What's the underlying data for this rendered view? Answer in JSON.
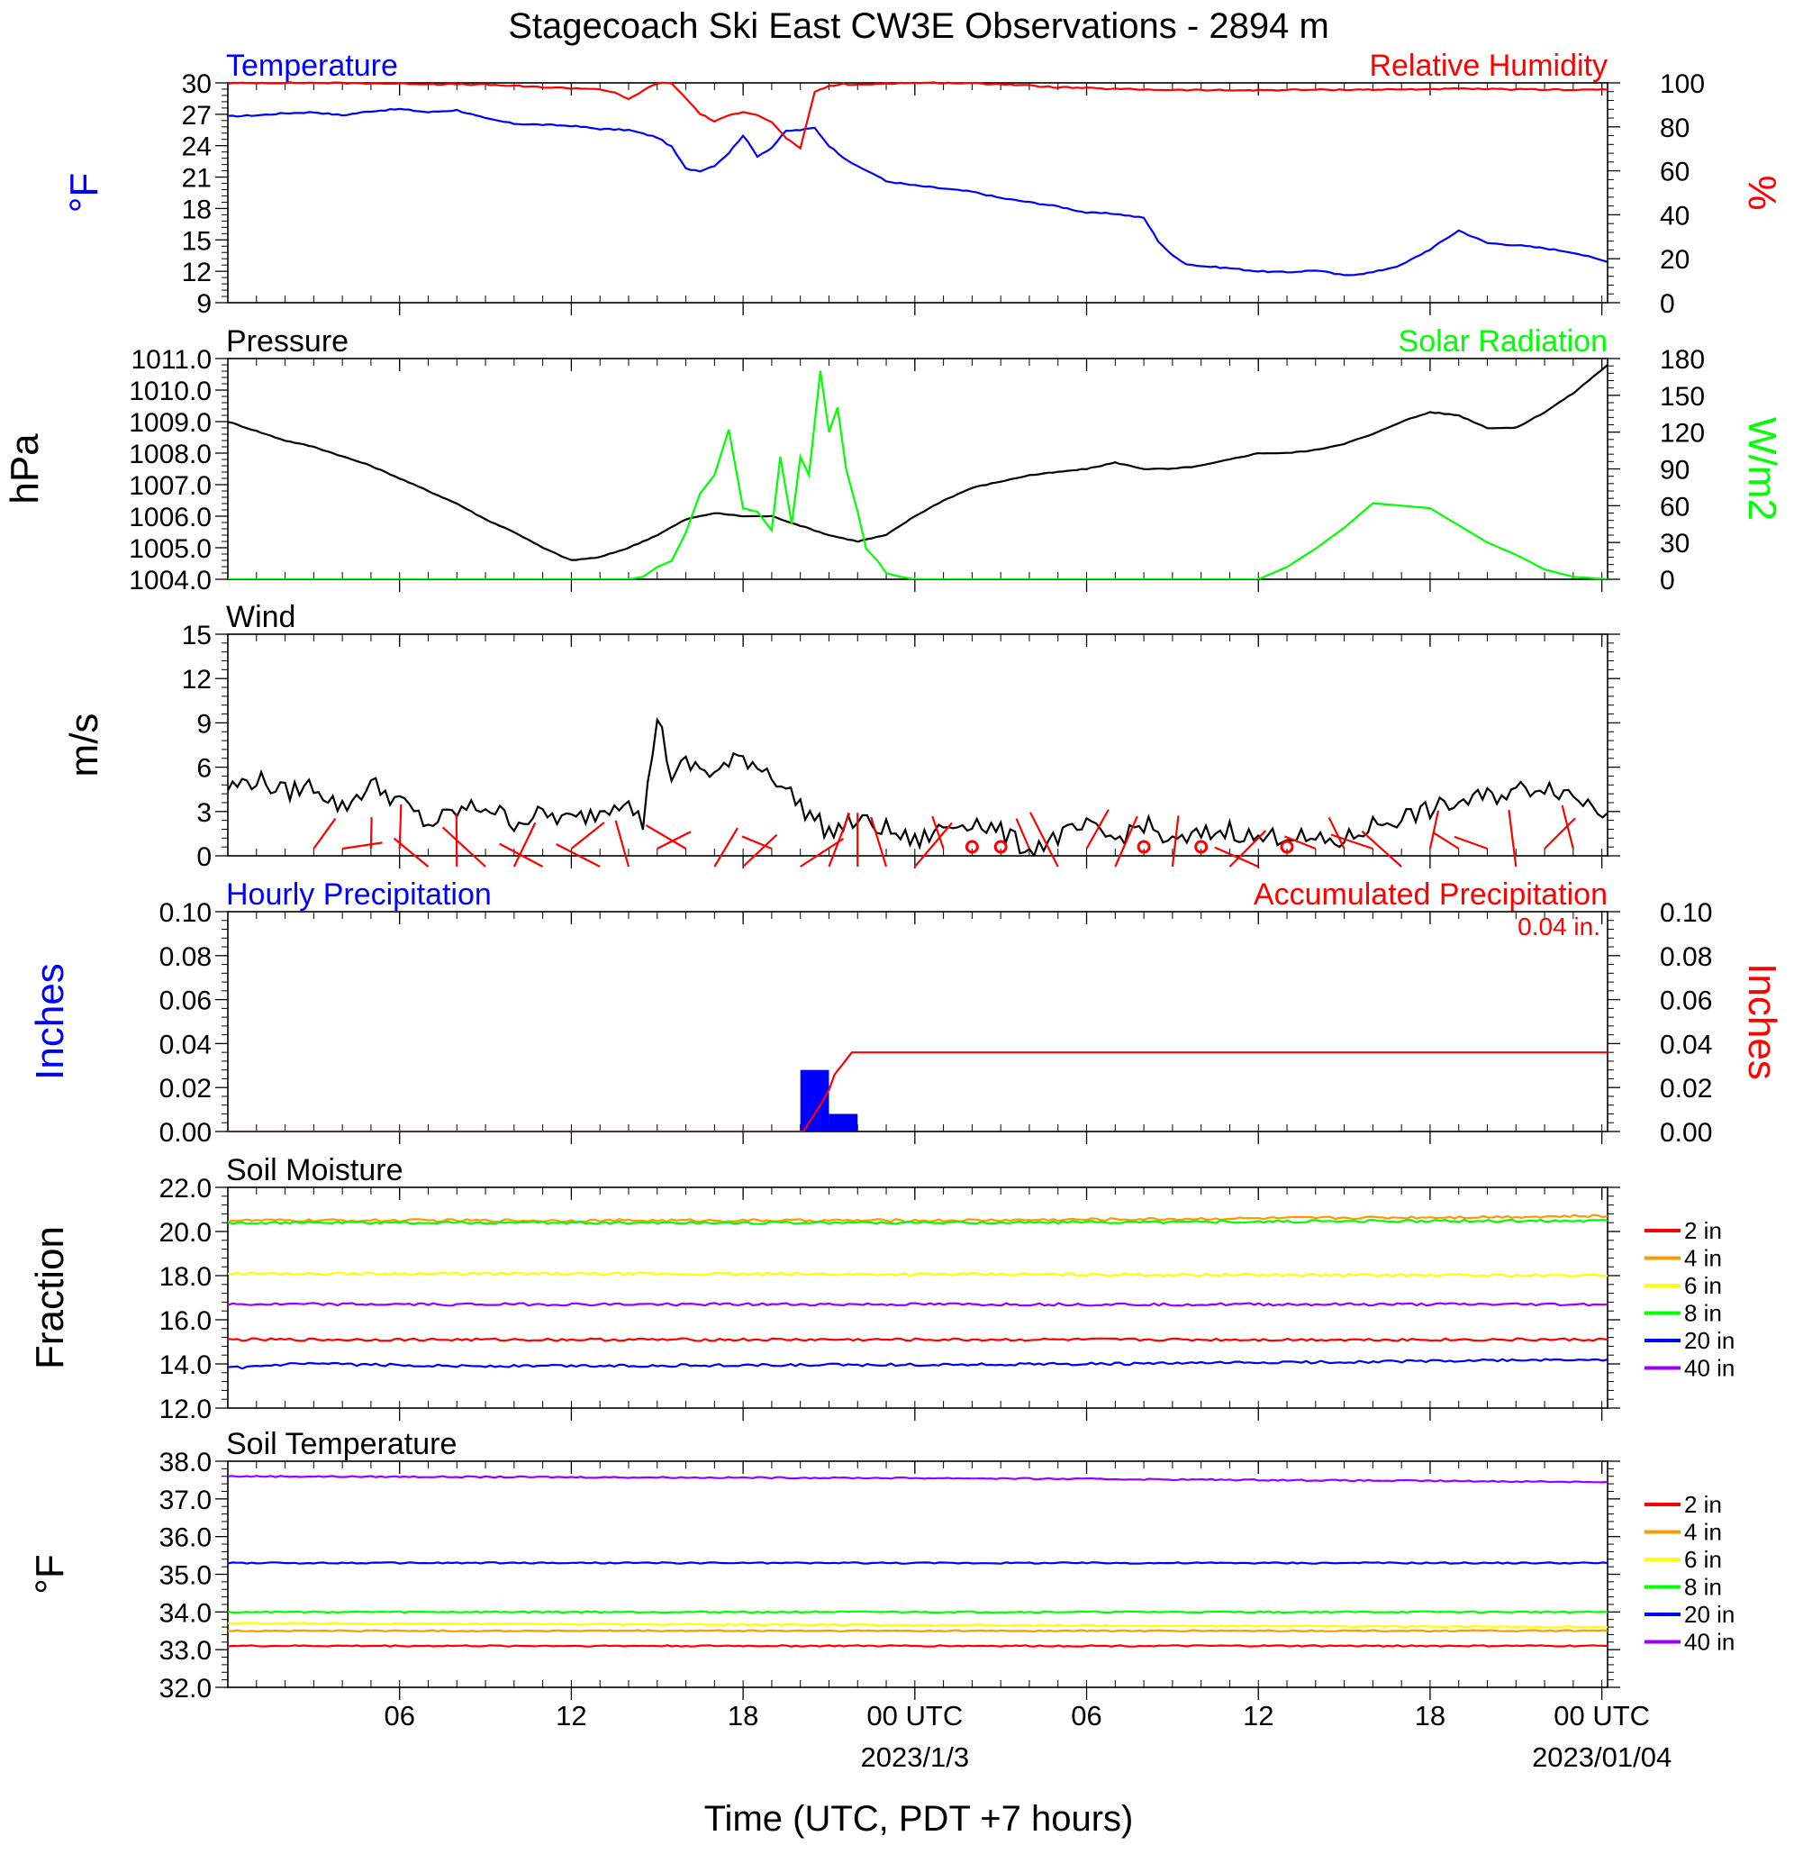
{
  "figure": {
    "title": "Stagecoach Ski East CW3E Observations - 2894 m",
    "xlabel": "Time (UTC, PDT +7 hours)",
    "x_ticks": [
      "06",
      "12",
      "18",
      "00 UTC",
      "06",
      "12",
      "18",
      "00 UTC"
    ],
    "x_dates": [
      "2023/1/3",
      "2023/01/04"
    ],
    "x_range_hours": [
      -1.0,
      47.2
    ]
  },
  "chart_data": [
    {
      "type": "line",
      "panel": "temperature_rh",
      "left_title": "Temperature",
      "right_title": "Relative Humidity",
      "ylabel_left": "°F",
      "ylabel_right": "%",
      "ylim_left": [
        9,
        30
      ],
      "yticks_left": [
        "30",
        "27",
        "24",
        "21",
        "18",
        "15",
        "12",
        "9"
      ],
      "ylim_right": [
        0,
        100
      ],
      "yticks_right": [
        "100",
        "80",
        "60",
        "40",
        "20",
        "0"
      ],
      "series": [
        {
          "name": "Temperature",
          "axis": "left",
          "color": "#0000ff",
          "x": [
            -1,
            0,
            1,
            2,
            3,
            4,
            5,
            6,
            7,
            8,
            9,
            10,
            11,
            12,
            13,
            14,
            14.5,
            15,
            15.5,
            16,
            16.5,
            17,
            17.5,
            18,
            18.5,
            19,
            19.5,
            20,
            20.5,
            21,
            21.5,
            22,
            23,
            24,
            25,
            26,
            27,
            28,
            29,
            30,
            31,
            31.5,
            32,
            32.5,
            33,
            34,
            35,
            36,
            37,
            38,
            39,
            40,
            41,
            41.5,
            42,
            43,
            44,
            45,
            46,
            47.2
          ],
          "y": [
            26.8,
            26.9,
            27.1,
            27.2,
            26.9,
            27.3,
            27.5,
            27.2,
            27.4,
            26.6,
            26.1,
            26.0,
            25.9,
            25.6,
            25.5,
            24.8,
            23.9,
            21.8,
            21.6,
            22.1,
            23.3,
            25.0,
            23.0,
            23.8,
            25.4,
            25.5,
            25.7,
            24.0,
            22.9,
            22.0,
            21.4,
            20.6,
            20.2,
            19.9,
            19.6,
            19.0,
            18.6,
            18.2,
            17.6,
            17.5,
            17.1,
            14.9,
            13.5,
            12.7,
            12.5,
            12.3,
            12.0,
            11.9,
            12.1,
            11.6,
            11.9,
            12.6,
            14.1,
            15.0,
            15.9,
            14.7,
            14.5,
            14.2,
            13.8,
            12.9
          ]
        },
        {
          "name": "Relative Humidity",
          "axis": "right",
          "color": "#ff0000",
          "x": [
            -1,
            0,
            2,
            4,
            6,
            8,
            10,
            12,
            12.5,
            13,
            13.5,
            14,
            14.5,
            15,
            15.5,
            16,
            16.5,
            17,
            17.5,
            18,
            18.5,
            19,
            19.5,
            20,
            20.5,
            21,
            22,
            23,
            24,
            26,
            28,
            30,
            32,
            34,
            36,
            38,
            40,
            42,
            44,
            46,
            47.2
          ],
          "y": [
            99.8,
            100,
            100,
            99.8,
            99.5,
            99.2,
            98.0,
            97.2,
            95.5,
            92.5,
            96.5,
            99.8,
            99.9,
            93.0,
            86.0,
            82.5,
            85.0,
            87.0,
            85.5,
            82.0,
            75.0,
            70.0,
            96.0,
            98.5,
            99.5,
            99.0,
            99.8,
            100,
            100,
            99.5,
            98.0,
            97.2,
            96.8,
            96.6,
            96.8,
            96.9,
            97.0,
            97.3,
            97.0,
            96.9,
            96.9
          ]
        }
      ]
    },
    {
      "type": "line",
      "panel": "pressure_solar",
      "left_title": "Pressure",
      "right_title": "Solar Radiation",
      "ylabel_left": "hPa",
      "ylabel_right": "W/m2",
      "ylim_left": [
        1004.0,
        1011.0
      ],
      "yticks_left": [
        "1011.0",
        "1010.0",
        "1009.0",
        "1008.0",
        "1007.0",
        "1006.0",
        "1005.0",
        "1004.0"
      ],
      "ylim_right": [
        0,
        180
      ],
      "yticks_right": [
        "180",
        "150",
        "120",
        "90",
        "60",
        "30",
        "0"
      ],
      "series": [
        {
          "name": "Pressure",
          "axis": "left",
          "color": "#000000",
          "x": [
            -1,
            0,
            1,
            2,
            3,
            4,
            5,
            6,
            7,
            8,
            9,
            10,
            11,
            12,
            13,
            14,
            15,
            16,
            17,
            18,
            19,
            20,
            21,
            22,
            23,
            24,
            25,
            26,
            27,
            28,
            29,
            30,
            31,
            32,
            33,
            34,
            35,
            36,
            37,
            38,
            39,
            40,
            41,
            42,
            43,
            44,
            45,
            46,
            47.2
          ],
          "y": [
            1009.0,
            1008.7,
            1008.4,
            1008.2,
            1007.9,
            1007.6,
            1007.2,
            1006.8,
            1006.4,
            1005.9,
            1005.5,
            1005.0,
            1004.6,
            1004.7,
            1005.0,
            1005.4,
            1005.9,
            1006.1,
            1006.0,
            1006.0,
            1005.7,
            1005.4,
            1005.2,
            1005.4,
            1006.0,
            1006.5,
            1006.9,
            1007.1,
            1007.3,
            1007.4,
            1007.5,
            1007.7,
            1007.5,
            1007.5,
            1007.6,
            1007.8,
            1008.0,
            1008.0,
            1008.1,
            1008.3,
            1008.6,
            1009.0,
            1009.3,
            1009.2,
            1008.8,
            1008.8,
            1009.3,
            1009.9,
            1010.8
          ]
        },
        {
          "name": "Solar Radiation",
          "axis": "right",
          "color": "#00ff00",
          "x": [
            -1,
            12,
            13,
            13.5,
            14,
            14.5,
            15,
            15.5,
            16,
            16.5,
            17,
            17.5,
            18,
            18.3,
            18.7,
            19,
            19.3,
            19.7,
            20,
            20.3,
            20.6,
            21,
            21.3,
            21.7,
            22,
            22.5,
            23,
            24,
            35,
            36,
            37,
            38,
            39,
            40,
            41,
            42,
            43,
            44,
            45,
            46,
            47.2
          ],
          "y": [
            0,
            0,
            0,
            2,
            10,
            15,
            38,
            70,
            85,
            122,
            58,
            55,
            40,
            100,
            45,
            100,
            85,
            170,
            120,
            140,
            90,
            55,
            25,
            15,
            5,
            2,
            0,
            0,
            0,
            10,
            25,
            42,
            62,
            60,
            58,
            44,
            30,
            20,
            8,
            2,
            0
          ]
        }
      ]
    },
    {
      "type": "line",
      "panel": "wind",
      "left_title": "Wind",
      "ylabel_left": "m/s",
      "ylim_left": [
        0,
        15
      ],
      "yticks_left": [
        "15",
        "12",
        "9",
        "6",
        "3",
        "0"
      ],
      "series": [
        {
          "name": "Wind",
          "axis": "left",
          "color": "#000000",
          "x": [
            -1,
            0,
            1,
            2,
            3,
            4,
            5,
            6,
            7,
            8,
            9,
            10,
            11,
            12,
            13,
            13.5,
            14,
            14.5,
            15,
            16,
            17,
            18,
            19,
            20,
            21,
            22,
            23,
            24,
            25,
            26,
            27,
            28,
            29,
            30,
            31,
            32,
            33,
            34,
            35,
            36,
            37,
            38,
            39,
            40,
            41,
            42,
            43,
            44,
            45,
            46,
            47.2
          ],
          "y": [
            4.6,
            5.2,
            4.3,
            4.8,
            3.2,
            4.9,
            3.7,
            2.1,
            3.0,
            3.4,
            2.3,
            2.8,
            2.4,
            3.0,
            4.1,
            2.0,
            9.6,
            5.4,
            6.2,
            5.6,
            6.7,
            5.6,
            3.4,
            1.6,
            2.4,
            1.8,
            0.9,
            1.9,
            2.4,
            1.6,
            0.4,
            1.3,
            1.9,
            1.1,
            2.2,
            0.8,
            1.4,
            1.8,
            1.1,
            1.5,
            0.9,
            1.0,
            2.1,
            2.6,
            3.1,
            3.6,
            4.0,
            4.4,
            4.8,
            4.1,
            2.9
          ]
        }
      ],
      "barbs_hours": [
        2,
        3,
        4,
        5,
        6,
        7,
        8,
        9,
        10,
        11,
        12,
        13,
        14,
        15,
        16,
        17,
        18,
        19,
        20,
        21,
        22,
        23,
        24,
        25,
        26,
        27,
        28,
        29,
        30,
        31,
        32,
        33,
        34,
        35,
        36,
        37,
        38,
        39,
        40,
        41,
        42,
        43,
        44,
        45,
        46
      ],
      "calm_hours": [
        25,
        26,
        31,
        33,
        36
      ],
      "barb_color": "#ff0000"
    },
    {
      "type": "bar",
      "panel": "precipitation",
      "left_title": "Hourly Precipitation",
      "right_title": "Accumulated Precipitation",
      "annotation": "0.04 in.",
      "ylabel_left": "Inches",
      "ylabel_right": "Inches",
      "ylim_left": [
        0,
        0.1
      ],
      "yticks_left": [
        "0.10",
        "0.08",
        "0.06",
        "0.04",
        "0.02",
        "0.00"
      ],
      "ylim_right": [
        0,
        0.1
      ],
      "yticks_right": [
        "0.10",
        "0.08",
        "0.06",
        "0.04",
        "0.02",
        "0.00"
      ],
      "bars": {
        "name": "Hourly Precipitation",
        "color": "#0000ff",
        "x_start": [
          19.0,
          20.0
        ],
        "x_end": [
          20.0,
          21.0
        ],
        "values": [
          0.028,
          0.008
        ]
      },
      "series": [
        {
          "name": "Accumulated Precipitation",
          "axis": "right",
          "color": "#ff0000",
          "x": [
            -1,
            18,
            19.1,
            19.4,
            19.7,
            20.0,
            20.2,
            20.5,
            20.8,
            47.2
          ],
          "y": [
            0,
            0,
            0,
            0.006,
            0.012,
            0.019,
            0.026,
            0.031,
            0.036,
            0.036
          ]
        }
      ]
    },
    {
      "type": "line",
      "panel": "soil_moisture",
      "left_title": "Soil Moisture",
      "ylabel_left": "Fraction",
      "ylim_left": [
        12.0,
        22.0
      ],
      "yticks_left": [
        "22.0",
        "20.0",
        "18.0",
        "16.0",
        "14.0",
        "12.0"
      ],
      "legend": [
        "2 in",
        "4 in",
        "6 in",
        "8 in",
        "20 in",
        "40 in"
      ],
      "series": [
        {
          "name": "2 in",
          "color": "#ff0000",
          "x": [
            -1,
            47.2
          ],
          "y": [
            15.1,
            15.1
          ]
        },
        {
          "name": "4 in",
          "color": "#ff9900",
          "x": [
            -1,
            24,
            47.2
          ],
          "y": [
            20.5,
            20.5,
            20.7
          ]
        },
        {
          "name": "6 in",
          "color": "#ffff00",
          "x": [
            -1,
            30,
            47.2
          ],
          "y": [
            18.1,
            18.05,
            18.0
          ]
        },
        {
          "name": "8 in",
          "color": "#00ff00",
          "x": [
            -1,
            24,
            47.2
          ],
          "y": [
            20.4,
            20.4,
            20.5
          ]
        },
        {
          "name": "20 in",
          "color": "#0000ff",
          "x": [
            -1,
            1.5,
            8,
            30,
            47.2
          ],
          "y": [
            13.8,
            14.0,
            13.9,
            14.0,
            14.2
          ]
        },
        {
          "name": "40 in",
          "color": "#9900ff",
          "x": [
            -1,
            47.2
          ],
          "y": [
            16.7,
            16.7
          ]
        }
      ]
    },
    {
      "type": "line",
      "panel": "soil_temperature",
      "left_title": "Soil Temperature",
      "ylabel_left": "°F",
      "ylim_left": [
        32.0,
        38.0
      ],
      "yticks_left": [
        "38.0",
        "37.0",
        "36.0",
        "35.0",
        "34.0",
        "33.0",
        "32.0"
      ],
      "legend": [
        "2 in",
        "4 in",
        "6 in",
        "8 in",
        "20 in",
        "40 in"
      ],
      "series": [
        {
          "name": "2 in",
          "color": "#ff0000",
          "x": [
            -1,
            47.2
          ],
          "y": [
            33.1,
            33.1
          ]
        },
        {
          "name": "4 in",
          "color": "#ff9900",
          "x": [
            -1,
            47.2
          ],
          "y": [
            33.5,
            33.5
          ]
        },
        {
          "name": "6 in",
          "color": "#ffff00",
          "x": [
            -1,
            24,
            47.2
          ],
          "y": [
            33.7,
            33.65,
            33.6
          ]
        },
        {
          "name": "8 in",
          "color": "#00ff00",
          "x": [
            -1,
            47.2
          ],
          "y": [
            34.0,
            34.0
          ]
        },
        {
          "name": "20 in",
          "color": "#0000ff",
          "x": [
            -1,
            47.2
          ],
          "y": [
            35.3,
            35.3
          ]
        },
        {
          "name": "40 in",
          "color": "#9900ff",
          "x": [
            -1,
            24,
            47.2
          ],
          "y": [
            37.6,
            37.55,
            37.45
          ]
        }
      ]
    }
  ]
}
